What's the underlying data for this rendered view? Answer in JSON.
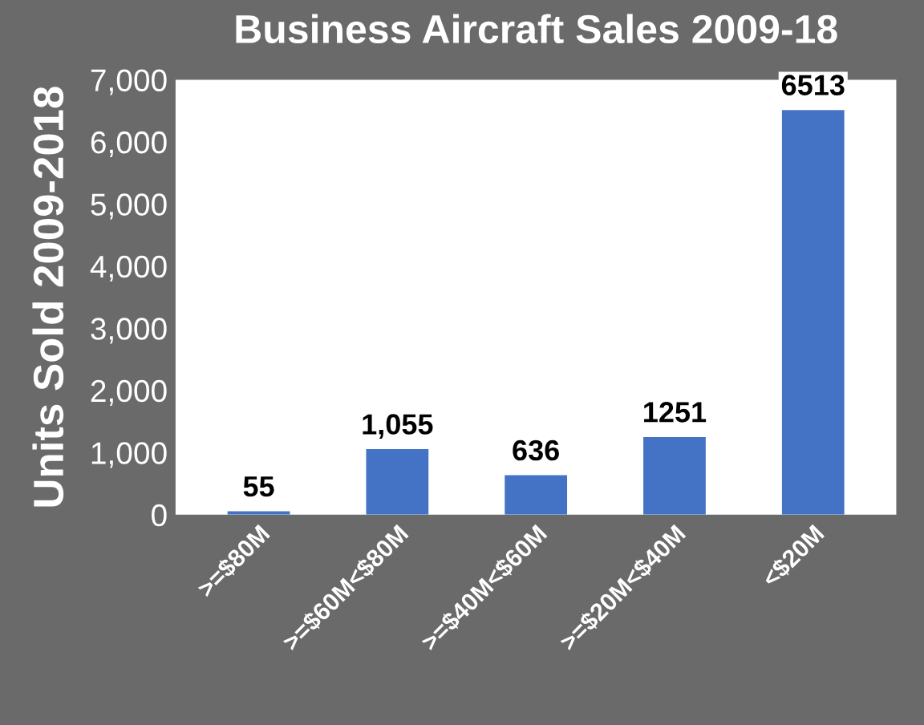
{
  "chart_data": {
    "type": "bar",
    "title": "Business Aircraft Sales 2009-18",
    "ylabel": "Units Sold 2009-2018",
    "categories": [
      ">=$80M",
      ">=$60M<$80M",
      ">=$40M<$60M",
      ">=$20M<$40M",
      "<$20M"
    ],
    "values": [
      55,
      1055,
      636,
      1251,
      6513
    ],
    "value_labels": [
      "55",
      "1,055",
      "636",
      "1251",
      "6513"
    ],
    "color": "#4472c4",
    "ylim": [
      0,
      7000
    ],
    "yticks": [
      0,
      {
        "value": 1000,
        "label": "1,000"
      },
      {
        "value": 2000,
        "label": "2,000"
      },
      {
        "value": 3000,
        "label": "3,000"
      },
      {
        "value": 4000,
        "label": "4,000"
      },
      {
        "value": 5000,
        "label": "5,000"
      },
      {
        "value": 6000,
        "label": "6,000"
      },
      {
        "value": 7000,
        "label": "7,000"
      }
    ],
    "grid": false
  }
}
